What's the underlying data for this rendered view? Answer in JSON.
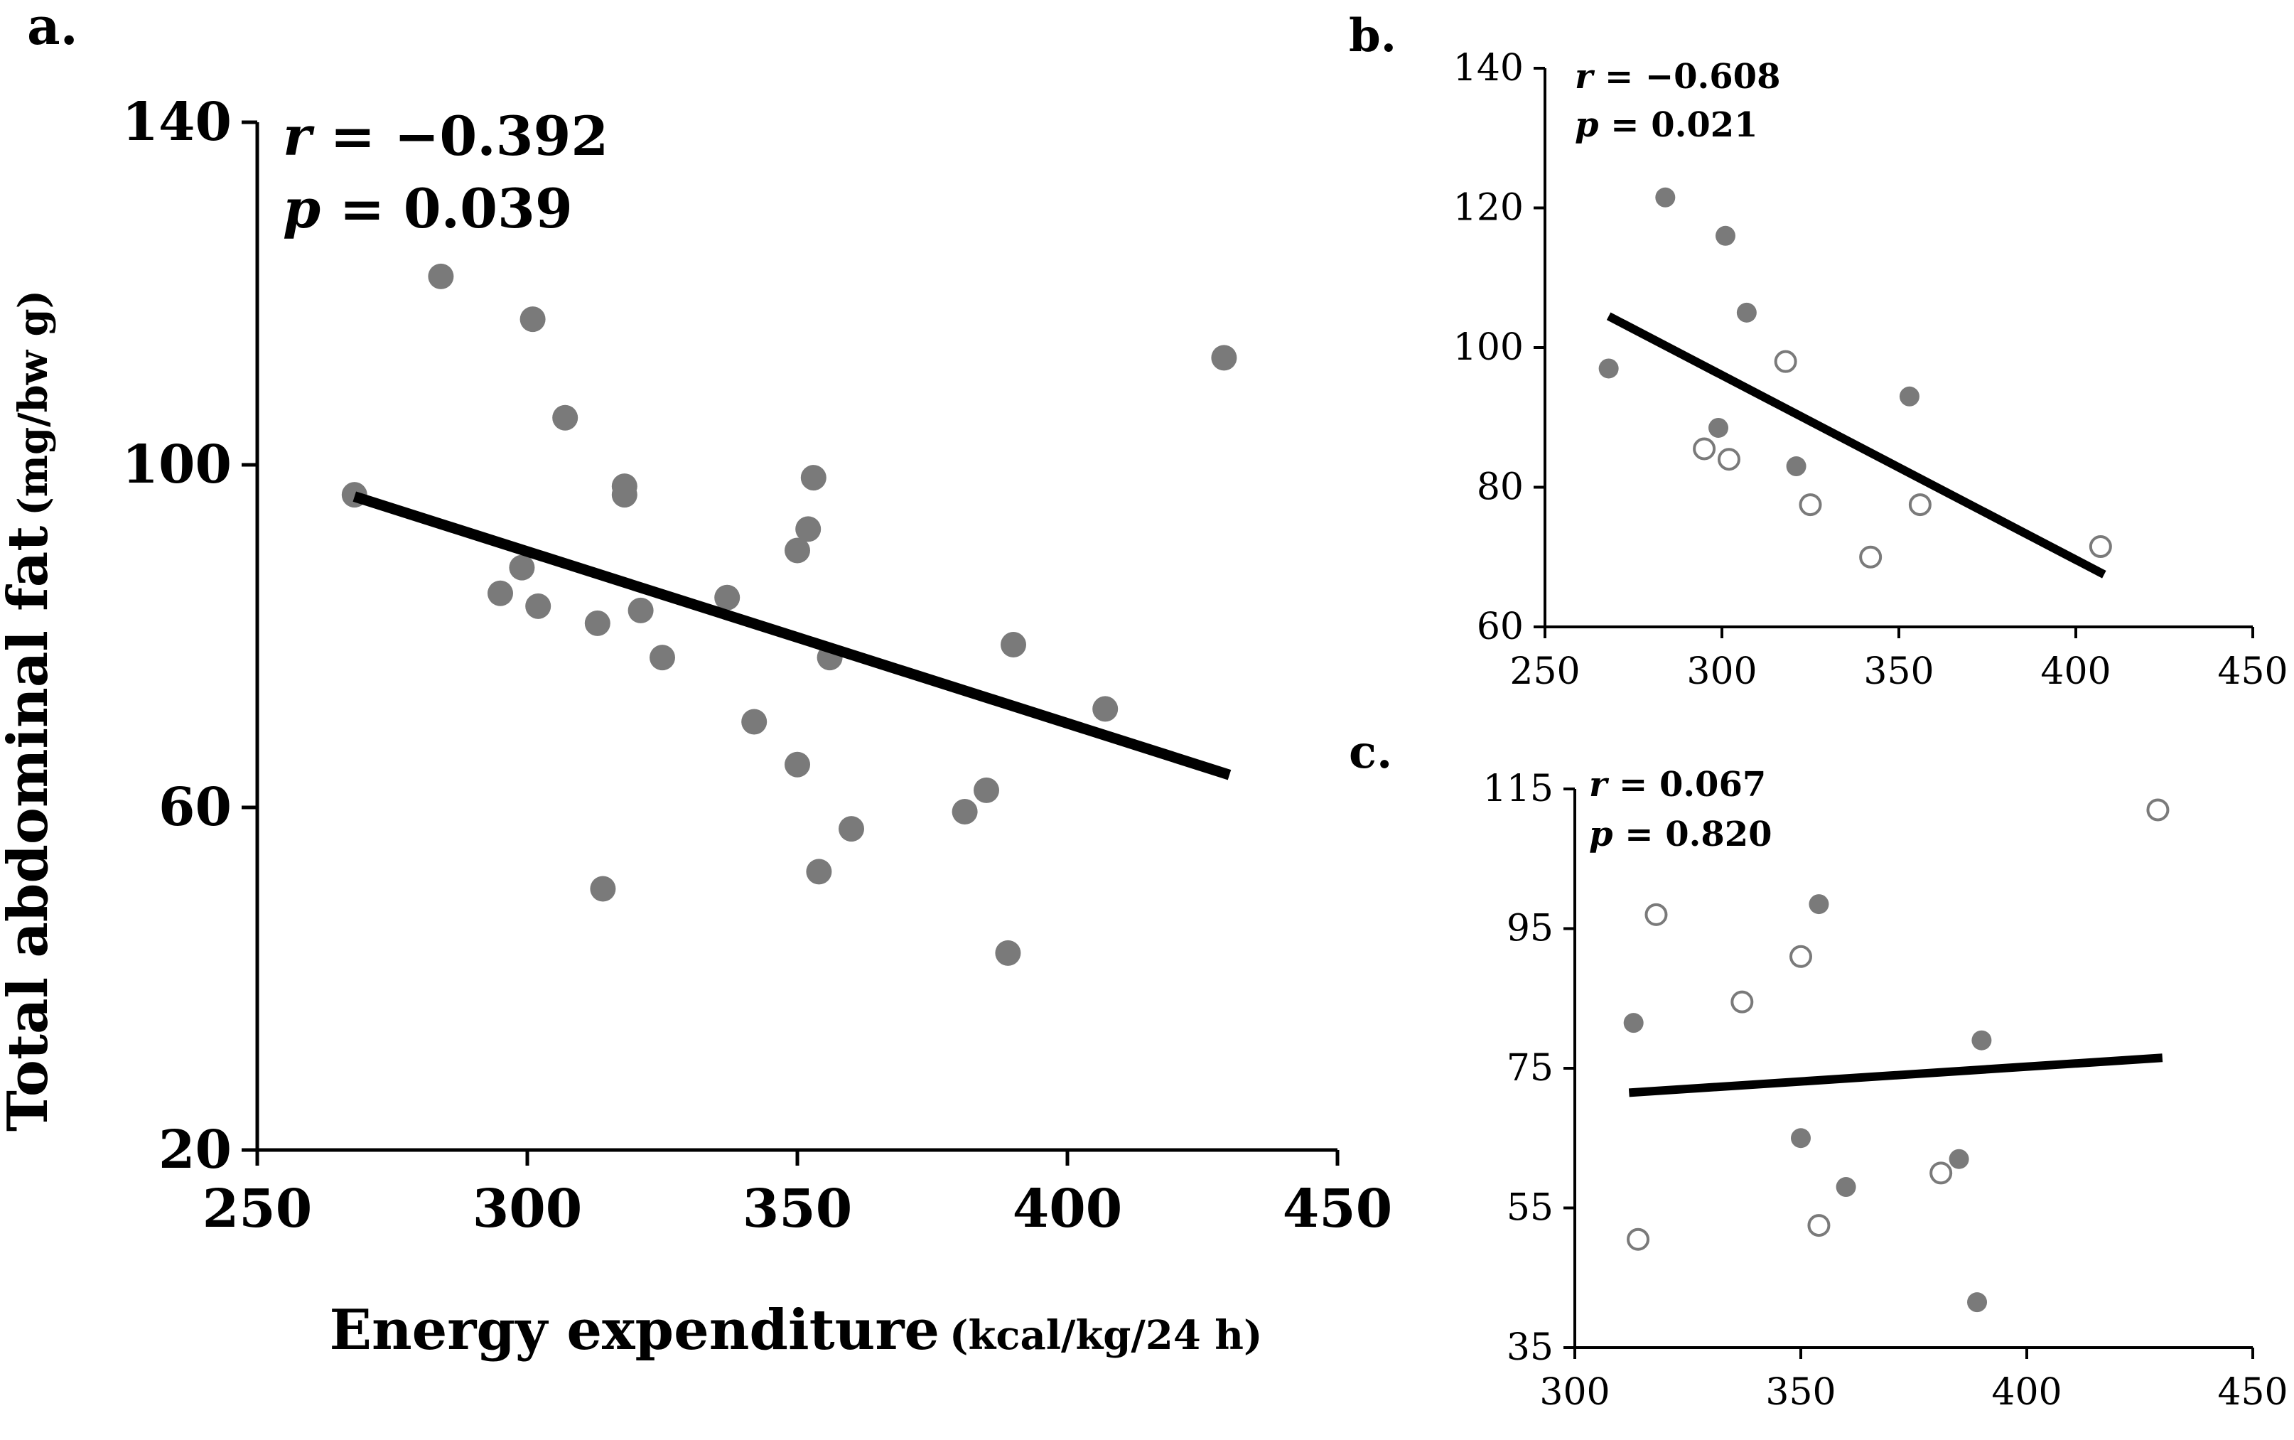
{
  "figure": {
    "panel_letters": {
      "a": "a.",
      "b": "b.",
      "c": "c."
    }
  },
  "colors": {
    "point_fill": "#7a7a7a",
    "open_point_stroke": "#7a7a7a",
    "trend_line": "#000000",
    "axis": "#000000"
  },
  "chart_data": [
    {
      "id": "a",
      "type": "scatter",
      "title": "",
      "xlabel_main": "Energy expenditure",
      "xlabel_unit": "(kcal/kg/24 h)",
      "ylabel_main": "Total abdominal fat",
      "ylabel_unit": "(mg/bw g)",
      "xlim": [
        250,
        450
      ],
      "ylim": [
        20,
        140
      ],
      "xticks": [
        250,
        300,
        350,
        400,
        450
      ],
      "yticks": [
        20,
        60,
        100,
        140
      ],
      "stats": {
        "r_symbol": "r",
        "r_value": " = −0.392",
        "p_symbol": "p",
        "p_value": " = 0.039"
      },
      "trend": {
        "x": [
          268,
          430
        ],
        "y": [
          96.3,
          63.8
        ]
      },
      "series": [
        {
          "name": "all",
          "marker": "filled",
          "points": [
            [
              268,
              96.5
            ],
            [
              284,
              122
            ],
            [
              301,
              117
            ],
            [
              307,
              105.5
            ],
            [
              318,
              97.5
            ],
            [
              318,
              96.5
            ],
            [
              299,
              88
            ],
            [
              295,
              85
            ],
            [
              302,
              83.5
            ],
            [
              313,
              81.5
            ],
            [
              321,
              83
            ],
            [
              325,
              77.5
            ],
            [
              337,
              84.5
            ],
            [
              342,
              70
            ],
            [
              353,
              98.5
            ],
            [
              352,
              92.5
            ],
            [
              350,
              90
            ],
            [
              356,
              77.5
            ],
            [
              350,
              65
            ],
            [
              354,
              52.5
            ],
            [
              360,
              57.5
            ],
            [
              381,
              59.5
            ],
            [
              385,
              62
            ],
            [
              390,
              79
            ],
            [
              389,
              43
            ],
            [
              407,
              71.5
            ],
            [
              429,
              112.5
            ],
            [
              314,
              50.5
            ]
          ]
        }
      ]
    },
    {
      "id": "b",
      "type": "scatter",
      "title": "",
      "xlabel_main": "",
      "ylabel_main": "",
      "xlim": [
        250,
        450
      ],
      "ylim": [
        60,
        140
      ],
      "xticks": [
        250,
        300,
        350,
        400,
        450
      ],
      "yticks": [
        60,
        80,
        100,
        120,
        140
      ],
      "stats": {
        "r_symbol": "r",
        "r_value": " = −0.608",
        "p_symbol": "p",
        "p_value": " = 0.021"
      },
      "trend": {
        "x": [
          268,
          408
        ],
        "y": [
          104.5,
          67.5
        ]
      },
      "series": [
        {
          "name": "filled",
          "marker": "filled",
          "points": [
            [
              284,
              121.5
            ],
            [
              301,
              116
            ],
            [
              307,
              105
            ],
            [
              268,
              97
            ],
            [
              353,
              93
            ],
            [
              299,
              88.5
            ],
            [
              321,
              83
            ]
          ]
        },
        {
          "name": "open",
          "marker": "open",
          "points": [
            [
              318,
              98
            ],
            [
              295,
              85.5
            ],
            [
              302,
              84
            ],
            [
              325,
              77.5
            ],
            [
              356,
              77.5
            ],
            [
              342,
              70
            ],
            [
              407,
              71.5
            ]
          ]
        }
      ]
    },
    {
      "id": "c",
      "type": "scatter",
      "title": "",
      "xlabel_main": "",
      "ylabel_main": "",
      "xlim": [
        300,
        450
      ],
      "ylim": [
        35,
        115
      ],
      "xticks": [
        300,
        350,
        400,
        450
      ],
      "yticks": [
        35,
        55,
        75,
        95,
        115
      ],
      "stats": {
        "r_symbol": "r",
        "r_value": " = 0.067",
        "p_symbol": "p",
        "p_value": " = 0.820"
      },
      "trend": {
        "x": [
          312,
          430
        ],
        "y": [
          71.5,
          76.5
        ]
      },
      "series": [
        {
          "name": "filled",
          "marker": "filled",
          "points": [
            [
              313,
              81.5
            ],
            [
              354,
              98.5
            ],
            [
              390,
              79
            ],
            [
              350,
              65
            ],
            [
              385,
              62
            ],
            [
              360,
              58
            ],
            [
              389,
              41.5
            ]
          ]
        },
        {
          "name": "open",
          "marker": "open",
          "points": [
            [
              429,
              112
            ],
            [
              318,
              97
            ],
            [
              337,
              84.5
            ],
            [
              350,
              91
            ],
            [
              314,
              50.5
            ],
            [
              381,
              60
            ],
            [
              354,
              52.5
            ]
          ]
        }
      ]
    }
  ]
}
